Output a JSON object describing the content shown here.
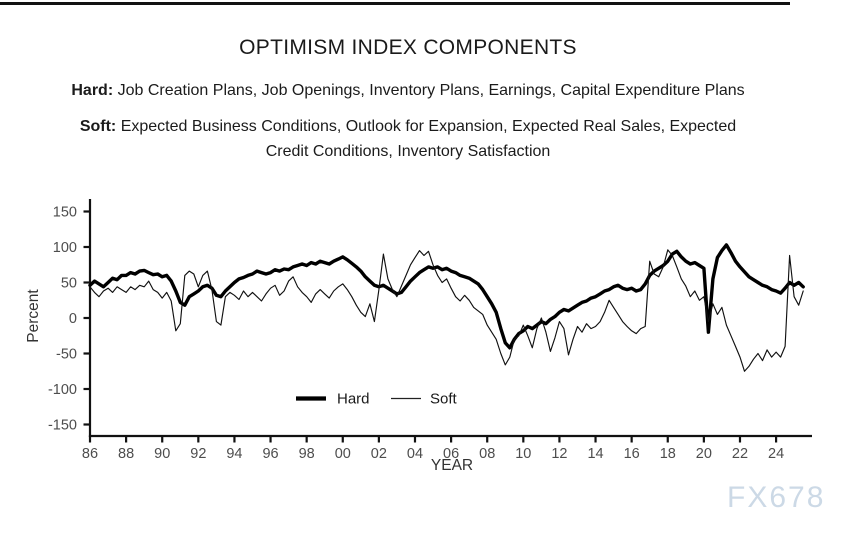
{
  "header": {
    "title": "OPTIMISM INDEX COMPONENTS"
  },
  "descriptions": {
    "hard": {
      "prefix": "Hard:",
      "text": " Job Creation Plans, Job Openings, Inventory Plans, Earnings, Capital Expenditure Plans"
    },
    "soft": {
      "prefix": "Soft:",
      "text": " Expected Business Conditions, Outlook for Expansion, Expected Real Sales, Expected\nCredit Conditions, Inventory Satisfaction"
    }
  },
  "watermark": "FX678",
  "chart_data": {
    "type": "line",
    "title": "OPTIMISM INDEX COMPONENTS",
    "xlabel": "YEAR",
    "ylabel": "Percent",
    "ylim": [
      -165,
      170
    ],
    "xlim": [
      1986,
      2025.9
    ],
    "grid": false,
    "legend_position": "bottom-center-inside",
    "yticks": [
      150,
      100,
      50,
      0,
      -50,
      -100,
      -150
    ],
    "xticks": {
      "values": [
        1986,
        1988,
        1990,
        1992,
        1994,
        1996,
        1998,
        2000,
        2002,
        2004,
        2006,
        2008,
        2010,
        2012,
        2014,
        2016,
        2018,
        2020,
        2022,
        2024
      ],
      "labels": [
        "86",
        "88",
        "90",
        "92",
        "94",
        "96",
        "98",
        "00",
        "02",
        "04",
        "06",
        "08",
        "10",
        "12",
        "14",
        "16",
        "18",
        "20",
        "22",
        "24"
      ]
    },
    "x_start_year": 1986,
    "x_step_years": 0.25,
    "series": [
      {
        "name": "Hard",
        "color": "#000000",
        "line_width": 3.4,
        "values": [
          46,
          52,
          48,
          44,
          50,
          56,
          54,
          60,
          60,
          64,
          62,
          66,
          67,
          64,
          61,
          62,
          58,
          60,
          52,
          38,
          22,
          18,
          30,
          34,
          38,
          44,
          46,
          42,
          32,
          30,
          38,
          44,
          50,
          55,
          57,
          60,
          62,
          66,
          64,
          62,
          64,
          68,
          66,
          69,
          68,
          72,
          74,
          76,
          74,
          78,
          76,
          80,
          78,
          76,
          80,
          83,
          86,
          82,
          77,
          72,
          66,
          58,
          52,
          46,
          44,
          46,
          42,
          38,
          34,
          36,
          44,
          52,
          58,
          64,
          68,
          72,
          70,
          72,
          68,
          70,
          66,
          64,
          60,
          58,
          56,
          52,
          48,
          40,
          30,
          20,
          8,
          -15,
          -35,
          -42,
          -30,
          -22,
          -18,
          -12,
          -15,
          -10,
          -5,
          -8,
          -2,
          2,
          8,
          12,
          10,
          14,
          18,
          22,
          24,
          28,
          30,
          34,
          38,
          40,
          44,
          46,
          42,
          40,
          42,
          38,
          40,
          48,
          60,
          66,
          70,
          74,
          80,
          90,
          94,
          86,
          80,
          76,
          78,
          74,
          70,
          -20,
          55,
          85,
          95,
          103,
          92,
          80,
          72,
          65,
          58,
          54,
          50,
          46,
          44,
          40,
          38,
          35,
          42,
          50,
          46,
          50,
          44
        ]
      },
      {
        "name": "Soft",
        "color": "#111111",
        "line_width": 1.15,
        "values": [
          44,
          36,
          30,
          38,
          42,
          36,
          44,
          40,
          36,
          44,
          40,
          46,
          44,
          52,
          40,
          36,
          28,
          36,
          24,
          -18,
          -8,
          60,
          66,
          62,
          44,
          60,
          66,
          40,
          -5,
          -10,
          30,
          36,
          32,
          26,
          38,
          30,
          36,
          30,
          24,
          34,
          42,
          46,
          32,
          38,
          52,
          58,
          44,
          36,
          30,
          22,
          34,
          40,
          34,
          28,
          38,
          44,
          48,
          40,
          30,
          18,
          8,
          2,
          20,
          -5,
          40,
          90,
          55,
          40,
          30,
          45,
          60,
          75,
          85,
          95,
          88,
          94,
          75,
          60,
          50,
          55,
          42,
          30,
          24,
          32,
          25,
          15,
          10,
          5,
          -10,
          -20,
          -30,
          -50,
          -66,
          -55,
          -30,
          -25,
          -10,
          -25,
          -42,
          -15,
          0,
          -20,
          -47,
          -28,
          -5,
          -15,
          -52,
          -30,
          -12,
          -20,
          -8,
          -15,
          -12,
          -5,
          8,
          25,
          15,
          5,
          -5,
          -12,
          -18,
          -22,
          -15,
          -12,
          80,
          62,
          58,
          72,
          96,
          88,
          72,
          55,
          45,
          30,
          38,
          25,
          30,
          -5,
          20,
          5,
          15,
          -10,
          -25,
          -40,
          -55,
          -75,
          -68,
          -58,
          -50,
          -60,
          -45,
          -55,
          -48,
          -55,
          -40,
          88,
          30,
          18,
          38
        ]
      }
    ]
  }
}
